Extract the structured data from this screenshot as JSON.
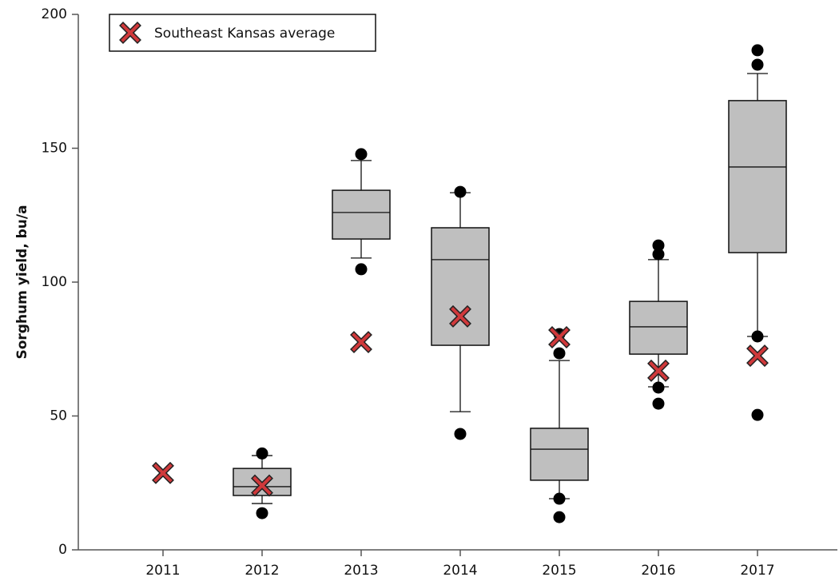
{
  "chart_data": {
    "type": "box",
    "y_label": "Sorghum yield, bu/a",
    "categories": [
      "2011",
      "2012",
      "2013",
      "2014",
      "2015",
      "2016",
      "2017"
    ],
    "ylim": [
      0,
      200
    ],
    "yticks": [
      0,
      50,
      100,
      150,
      200
    ],
    "box_color": "#bfbfbf",
    "boxes": [
      null,
      {
        "whisker_low": 17.3,
        "q1": 20.3,
        "median": 23.6,
        "q3": 30.4,
        "whisker_high": 35.2,
        "outliers": [
          36,
          13.7
        ]
      },
      {
        "whisker_low": 109,
        "q1": 116.1,
        "median": 126,
        "q3": 134.3,
        "whisker_high": 145.4,
        "outliers": [
          147.8,
          104.8
        ]
      },
      {
        "whisker_low": 51.6,
        "q1": 76.4,
        "median": 108.4,
        "q3": 120.3,
        "whisker_high": 133.4,
        "outliers": [
          133.7,
          43.3
        ]
      },
      {
        "whisker_low": 19.1,
        "q1": 26,
        "median": 37.6,
        "q3": 45.4,
        "whisker_high": 70.7,
        "outliers": [
          80.6,
          73.4,
          19.1,
          12.2
        ]
      },
      {
        "whisker_low": 60.9,
        "q1": 73.1,
        "median": 83.3,
        "q3": 92.8,
        "whisker_high": 108.4,
        "outliers": [
          113.7,
          110.4,
          60.6,
          54.6
        ]
      },
      {
        "whisker_low": 79.7,
        "q1": 111,
        "median": 143,
        "q3": 167.8,
        "whisker_high": 177.9,
        "outliers": [
          186.6,
          181.2,
          79.7,
          50.4
        ]
      }
    ],
    "average": {
      "name": "Southeast Kansas average",
      "color": "#d0393b",
      "values": [
        28.7,
        24,
        77.6,
        87.2,
        79.4,
        66.9,
        72.5
      ]
    }
  }
}
